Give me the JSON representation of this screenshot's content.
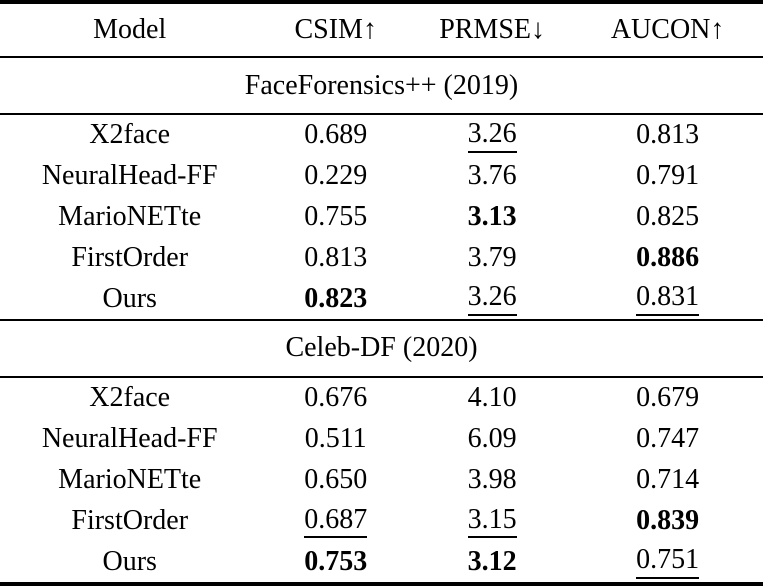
{
  "table": {
    "columns": [
      "Model",
      "CSIM↑",
      "PRMSE↓",
      "AUCON↑"
    ],
    "column_icons": [
      "",
      "up-arrow",
      "down-arrow",
      "up-arrow"
    ],
    "text_color": "#000000",
    "background_color": "#ffffff",
    "rule_color": "#000000",
    "sections": [
      {
        "title": "FaceForensics++ (2019)",
        "rows": [
          {
            "model": "X2face",
            "cells": [
              {
                "text": "0.689"
              },
              {
                "text": "3.26",
                "underline": true
              },
              {
                "text": "0.813"
              }
            ]
          },
          {
            "model": "NeuralHead-FF",
            "cells": [
              {
                "text": "0.229"
              },
              {
                "text": "3.76"
              },
              {
                "text": "0.791"
              }
            ]
          },
          {
            "model": "MarioNETte",
            "cells": [
              {
                "text": "0.755"
              },
              {
                "text": "3.13",
                "bold": true
              },
              {
                "text": "0.825"
              }
            ]
          },
          {
            "model": "FirstOrder",
            "cells": [
              {
                "text": "0.813"
              },
              {
                "text": "3.79"
              },
              {
                "text": "0.886",
                "bold": true
              }
            ]
          },
          {
            "model": "Ours",
            "cells": [
              {
                "text": "0.823",
                "bold": true
              },
              {
                "text": "3.26",
                "underline": true
              },
              {
                "text": "0.831",
                "underline": true
              }
            ]
          }
        ]
      },
      {
        "title": "Celeb-DF (2020)",
        "rows": [
          {
            "model": "X2face",
            "cells": [
              {
                "text": "0.676"
              },
              {
                "text": "4.10"
              },
              {
                "text": "0.679"
              }
            ]
          },
          {
            "model": "NeuralHead-FF",
            "cells": [
              {
                "text": "0.511"
              },
              {
                "text": "6.09"
              },
              {
                "text": "0.747"
              }
            ]
          },
          {
            "model": "MarioNETte",
            "cells": [
              {
                "text": "0.650"
              },
              {
                "text": "3.98"
              },
              {
                "text": "0.714"
              }
            ]
          },
          {
            "model": "FirstOrder",
            "cells": [
              {
                "text": "0.687",
                "underline": true
              },
              {
                "text": "3.15",
                "underline": true
              },
              {
                "text": "0.839",
                "bold": true
              }
            ]
          },
          {
            "model": "Ours",
            "cells": [
              {
                "text": "0.753",
                "bold": true
              },
              {
                "text": "3.12",
                "bold": true
              },
              {
                "text": "0.751",
                "underline": true
              }
            ]
          }
        ]
      }
    ]
  }
}
